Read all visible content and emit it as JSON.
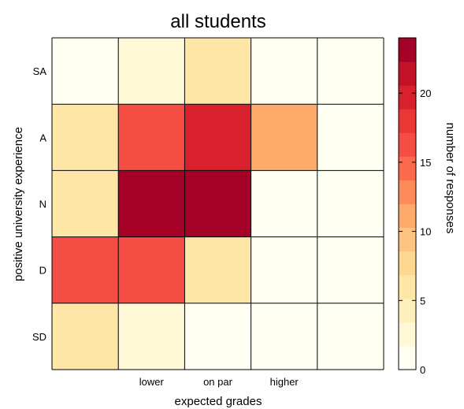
{
  "chart_data": {
    "type": "heatmap",
    "title": "all students",
    "xlabel": "expected grades",
    "ylabel": "positive university experience",
    "colorbar_label": "number of responses",
    "x_categories": [
      "",
      "lower",
      "on par",
      "higher",
      ""
    ],
    "y_categories": [
      "SA",
      "A",
      "N",
      "D",
      "SD"
    ],
    "values": [
      [
        0,
        2,
        6,
        0,
        0
      ],
      [
        6,
        17,
        20,
        11,
        0
      ],
      [
        6,
        24,
        24,
        0,
        0
      ],
      [
        17,
        17,
        6,
        0,
        0
      ],
      [
        6,
        2,
        0,
        0,
        0
      ]
    ],
    "colorbar_range": [
      0,
      24
    ],
    "colorbar_ticks": [
      "0",
      "5",
      "10",
      "15",
      "20"
    ],
    "colorbar_tick_values": [
      0,
      5,
      10,
      15,
      20
    ],
    "colormap": [
      "#fffff2",
      "#fff8d6",
      "#ffefbd",
      "#fee6a6",
      "#fed791",
      "#fdc481",
      "#fdaa6b",
      "#fc8b59",
      "#fb6a4a",
      "#f44d43",
      "#ea3735",
      "#d8212d",
      "#c31128",
      "#a50026"
    ]
  }
}
